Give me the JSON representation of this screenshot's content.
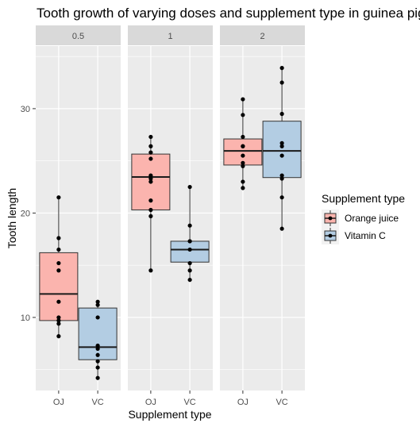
{
  "chart_data": {
    "type": "boxplot",
    "title": "Tooth growth of varying doses and supplement type in guinea pigs",
    "xlabel": "Supplement type",
    "ylabel": "Tooth length",
    "ylim": [
      3,
      36
    ],
    "y_ticks": [
      10,
      20,
      30
    ],
    "categories": [
      "OJ",
      "VC"
    ],
    "facets": [
      {
        "label": "0.5",
        "groups": [
          {
            "category": "OJ",
            "supplement": "Orange juice",
            "box": {
              "min": 8.2,
              "q1": 9.7,
              "median": 12.25,
              "q3": 16.2,
              "max": 21.5
            },
            "points": [
              8.2,
              9.4,
              9.7,
              10.0,
              11.5,
              14.5,
              15.2,
              16.5,
              17.6,
              21.5
            ]
          },
          {
            "category": "VC",
            "supplement": "Vitamin C",
            "box": {
              "min": 4.2,
              "q1": 5.95,
              "median": 7.15,
              "q3": 10.9,
              "max": 11.5
            },
            "points": [
              4.2,
              5.2,
              5.8,
              6.4,
              7.0,
              7.3,
              10.0,
              11.2,
              11.5
            ]
          }
        ]
      },
      {
        "label": "1",
        "groups": [
          {
            "category": "OJ",
            "supplement": "Orange juice",
            "box": {
              "min": 14.5,
              "q1": 20.3,
              "median": 23.45,
              "q3": 25.65,
              "max": 27.3
            },
            "points": [
              14.5,
              19.7,
              20.3,
              21.2,
              23.0,
              23.3,
              23.6,
              25.2,
              25.8,
              26.4,
              27.3
            ]
          },
          {
            "category": "VC",
            "supplement": "Vitamin C",
            "box": {
              "min": 13.6,
              "q1": 15.3,
              "median": 16.5,
              "q3": 17.3,
              "max": 22.5
            },
            "points": [
              13.6,
              14.5,
              15.2,
              16.5,
              17.3,
              17.3,
              18.8,
              22.5
            ]
          }
        ]
      },
      {
        "label": "2",
        "groups": [
          {
            "category": "OJ",
            "supplement": "Orange juice",
            "box": {
              "min": 22.4,
              "q1": 24.6,
              "median": 25.95,
              "q3": 27.1,
              "max": 30.9
            },
            "points": [
              22.4,
              23.0,
              24.5,
              24.8,
              25.5,
              26.4,
              26.4,
              27.3,
              29.4,
              30.9
            ]
          },
          {
            "category": "VC",
            "supplement": "Vitamin C",
            "box": {
              "min": 18.5,
              "q1": 23.4,
              "median": 25.95,
              "q3": 28.8,
              "max": 33.9
            },
            "points": [
              18.5,
              21.5,
              23.3,
              23.6,
              25.5,
              26.4,
              26.7,
              29.5,
              32.5,
              33.9
            ]
          }
        ]
      }
    ],
    "legend": {
      "title": "Supplement type",
      "position": "right",
      "entries": [
        {
          "label": "Orange juice",
          "color": "#fbb4ae"
        },
        {
          "label": "Vitamin C",
          "color": "#b3cde3"
        }
      ]
    },
    "colors": {
      "OJ": "#fbb4ae",
      "VC": "#b3cde3",
      "panel_bg": "#ebebeb",
      "strip_bg": "#d9d9d9",
      "grid": "#ffffff"
    },
    "grid": true
  }
}
